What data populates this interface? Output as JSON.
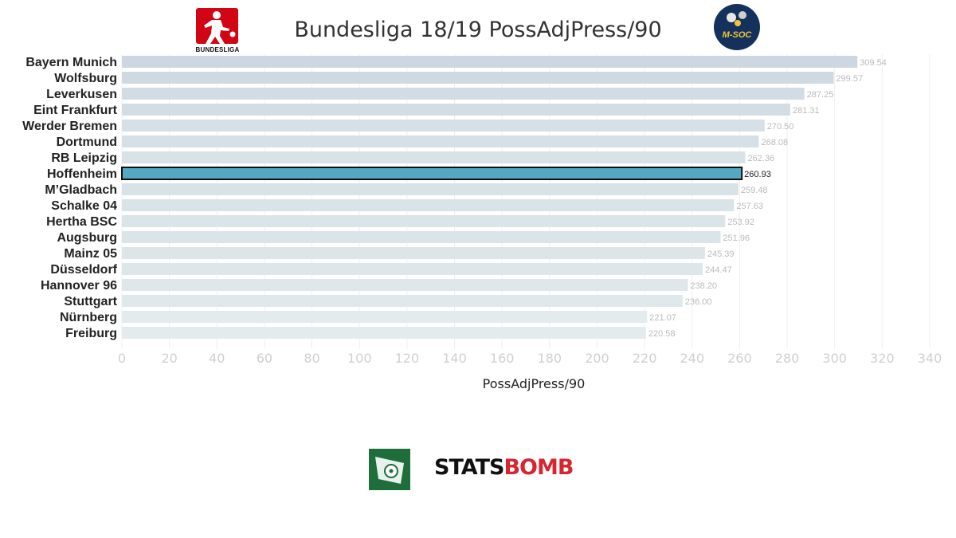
{
  "header": {
    "title": "Bundesliga 18/19 PossAdjPress/90",
    "league_logo_text": "BUNDESLIGA",
    "badge_text": "M-SOC"
  },
  "footer": {
    "brand_part1": "STATS",
    "brand_part2": "BOMB"
  },
  "colors": {
    "highlight": "#56a8c2",
    "bar_light": "#e3ebec",
    "bar_dark": "#cdd7e1",
    "brand_red": "#d6262f",
    "logo_red": "#d20515"
  },
  "chart_data": {
    "type": "bar",
    "orientation": "horizontal",
    "title": "Bundesliga 18/19 PossAdjPress/90",
    "xlabel": "PossAdjPress/90",
    "ylabel": "",
    "xlim": [
      0,
      340
    ],
    "xticks": [
      0,
      20,
      40,
      60,
      80,
      100,
      120,
      140,
      160,
      180,
      200,
      220,
      240,
      260,
      280,
      300,
      320,
      340
    ],
    "grid": true,
    "highlighted": "Hoffenheim",
    "categories": [
      "Bayern Munich",
      "Wolfsburg",
      "Leverkusen",
      "Eint Frankfurt",
      "Werder Bremen",
      "Dortmund",
      "RB Leipzig",
      "Hoffenheim",
      "M’Gladbach",
      "Schalke 04",
      "Hertha BSC",
      "Augsburg",
      "Mainz 05",
      "Düsseldorf",
      "Hannover 96",
      "Stuttgart",
      "Nürnberg",
      "Freiburg"
    ],
    "values": [
      309.54,
      299.57,
      287.25,
      281.31,
      270.5,
      268.08,
      262.36,
      260.93,
      259.48,
      257.63,
      253.92,
      251.96,
      245.39,
      244.47,
      238.2,
      236.0,
      221.07,
      220.58
    ],
    "value_labels": [
      "309.54",
      "299.57",
      "287.25",
      "281.31",
      "270.50",
      "268.08",
      "262.36",
      "260.93",
      "259.48",
      "257.63",
      "253.92",
      "251.96",
      "245.39",
      "244.47",
      "238.20",
      "236.00",
      "221.07",
      "220.58"
    ]
  }
}
